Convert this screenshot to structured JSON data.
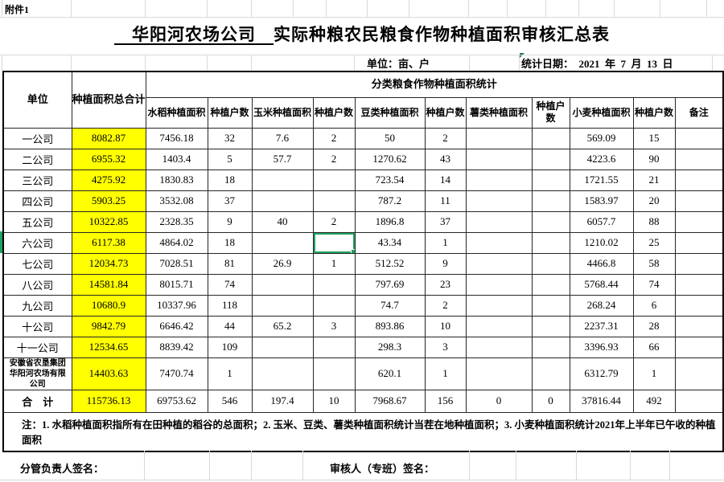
{
  "attachment_label": "附件1",
  "title": {
    "underlined": "　华阳河农场公司　",
    "rest": "实际种粮农民粮食作物种植面积审核汇总表"
  },
  "info": {
    "unit_label": "单位：亩、户",
    "date_label": "统计日期：  2021  年  7  月  13  日"
  },
  "colors": {
    "highlight": "#FFFF00",
    "selection": "#1EA362"
  },
  "selection": {
    "row": 5,
    "cell": 5
  },
  "table": {
    "headers": {
      "unit": "单位",
      "total": "种植面积总合计",
      "category_span": "分类粮食作物种植面积统计",
      "sub": [
        "水稻种植面积",
        "种植户数",
        "玉米种植面积",
        "种植户数",
        "豆类种植面积",
        "种植户数",
        "薯类种植面积",
        "种植户数",
        "小麦种植面积",
        "种植户数",
        "备注"
      ]
    },
    "rows": [
      {
        "name": "一公司",
        "cells": [
          "8082.87",
          "7456.18",
          "32",
          "7.6",
          "2",
          "50",
          "2",
          "",
          "",
          "569.09",
          "15",
          ""
        ]
      },
      {
        "name": "二公司",
        "cells": [
          "6955.32",
          "1403.4",
          "5",
          "57.7",
          "2",
          "1270.62",
          "43",
          "",
          "",
          "4223.6",
          "90",
          ""
        ]
      },
      {
        "name": "三公司",
        "cells": [
          "4275.92",
          "1830.83",
          "18",
          "",
          "",
          "723.54",
          "14",
          "",
          "",
          "1721.55",
          "21",
          ""
        ]
      },
      {
        "name": "四公司",
        "cells": [
          "5903.25",
          "3532.08",
          "37",
          "",
          "",
          "787.2",
          "11",
          "",
          "",
          "1583.97",
          "20",
          ""
        ]
      },
      {
        "name": "五公司",
        "cells": [
          "10322.85",
          "2328.35",
          "9",
          "40",
          "2",
          "1896.8",
          "37",
          "",
          "",
          "6057.7",
          "88",
          ""
        ]
      },
      {
        "name": "六公司",
        "cells": [
          "6117.38",
          "4864.02",
          "18",
          "",
          "",
          "43.34",
          "1",
          "",
          "",
          "1210.02",
          "25",
          ""
        ]
      },
      {
        "name": "七公司",
        "cells": [
          "12034.73",
          "7028.51",
          "81",
          "26.9",
          "1",
          "512.52",
          "9",
          "",
          "",
          "4466.8",
          "58",
          ""
        ]
      },
      {
        "name": "八公司",
        "cells": [
          "14581.84",
          "8015.71",
          "74",
          "",
          "",
          "797.69",
          "23",
          "",
          "",
          "5768.44",
          "74",
          ""
        ]
      },
      {
        "name": "九公司",
        "cells": [
          "10680.9",
          "10337.96",
          "118",
          "",
          "",
          "74.7",
          "2",
          "",
          "",
          "268.24",
          "6",
          ""
        ]
      },
      {
        "name": "十公司",
        "cells": [
          "9842.79",
          "6646.42",
          "44",
          "65.2",
          "3",
          "893.86",
          "10",
          "",
          "",
          "2237.31",
          "28",
          ""
        ]
      },
      {
        "name": "十一公司",
        "cells": [
          "12534.65",
          "8839.42",
          "109",
          "",
          "",
          "298.3",
          "3",
          "",
          "",
          "3396.93",
          "66",
          ""
        ]
      },
      {
        "name": "安徽省农垦集团华阳河农场有限公司",
        "cells": [
          "14403.63",
          "7470.74",
          "1",
          "",
          "",
          "620.1",
          "1",
          "",
          "",
          "6312.79",
          "1",
          ""
        ]
      },
      {
        "name": "合　计",
        "cells": [
          "115736.13",
          "69753.62",
          "546",
          "197.4",
          "10",
          "7968.67",
          "156",
          "0",
          "0",
          "37816.44",
          "492",
          ""
        ]
      }
    ],
    "note": "注：1. 水稻种植面积指所有在田种植的稻谷的总面积；2. 玉米、豆类、薯类种植面积统计当茬在地种植面积；3. 小麦种植面积统计2021年上半年已午收的种植面积"
  },
  "footer": {
    "left_sign": "分管负责人签名：",
    "right_sign": "审核人（专班）签名："
  }
}
